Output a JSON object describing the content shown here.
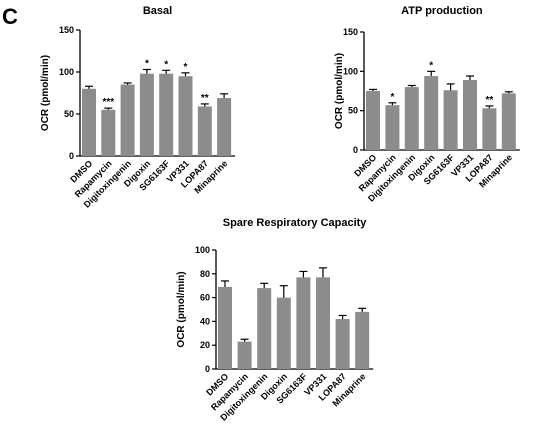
{
  "panel_letter": "C",
  "chart_data": [
    {
      "type": "bar",
      "title": "Basal",
      "xlabel": "",
      "ylabel": "OCR (pmol/min)",
      "ylim": [
        0,
        150
      ],
      "yticks": [
        0,
        50,
        100,
        150
      ],
      "categories": [
        "DMSO",
        "Rapamycin",
        "Digitoxingenin",
        "Digoxin",
        "SG6163F",
        "VP331",
        "LOPA87",
        "Minaprine"
      ],
      "values": [
        80,
        55,
        85,
        98,
        98,
        95,
        59,
        69
      ],
      "errors": [
        3,
        2,
        2,
        5,
        4,
        4,
        3,
        5
      ],
      "significance": [
        "",
        "***",
        "",
        "*",
        "*",
        "*",
        "**",
        ""
      ],
      "bar_color": "#8c8c8c"
    },
    {
      "type": "bar",
      "title": "ATP production",
      "xlabel": "",
      "ylabel": "OCR (pmol/min)",
      "ylim": [
        0,
        150
      ],
      "yticks": [
        0,
        50,
        100,
        150
      ],
      "categories": [
        "DMSO",
        "Rapamycin",
        "Digitoxingenin",
        "Digoxin",
        "SG6163F",
        "VP331",
        "LOPA87",
        "Minaprine"
      ],
      "values": [
        75,
        57,
        80,
        94,
        76,
        89,
        53,
        72
      ],
      "errors": [
        2,
        3,
        2,
        6,
        8,
        5,
        3,
        2
      ],
      "significance": [
        "",
        "*",
        "",
        "*",
        "",
        "",
        "**",
        ""
      ],
      "bar_color": "#8c8c8c"
    },
    {
      "type": "bar",
      "title": "Spare Respiratory Capacity",
      "xlabel": "",
      "ylabel": "OCR (pmol/min)",
      "ylim": [
        0,
        100
      ],
      "yticks": [
        0,
        20,
        40,
        60,
        80,
        100
      ],
      "categories": [
        "DMSO",
        "Rapamycin",
        "Digitoxingenin",
        "Digoxin",
        "SG6163F",
        "VP331",
        "LOPA87",
        "Minaprine"
      ],
      "values": [
        69,
        23,
        68,
        60,
        77,
        77,
        42,
        48
      ],
      "errors": [
        5,
        2,
        4,
        10,
        5,
        8,
        3,
        3
      ],
      "significance": [
        "",
        "",
        "",
        "",
        "",
        "",
        "",
        ""
      ],
      "bar_color": "#8c8c8c"
    }
  ]
}
